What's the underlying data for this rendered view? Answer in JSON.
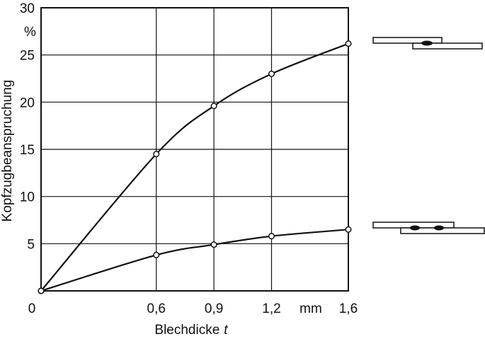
{
  "chart_data": {
    "type": "line",
    "xlabel": "Blechdicke",
    "xlabel_symbol": "t",
    "ylabel": "Kopfzugbeanspruchung",
    "yunit": "%",
    "xunit": "mm",
    "xlim": [
      0,
      1.6
    ],
    "ylim": [
      0,
      30
    ],
    "x_ticks": [
      {
        "value": 0,
        "label": "0"
      },
      {
        "value": 0.6,
        "label": "0,6"
      },
      {
        "value": 0.9,
        "label": "0,9"
      },
      {
        "value": 1.2,
        "label": "1,2"
      },
      {
        "value": 1.6,
        "label": "1,6"
      }
    ],
    "y_ticks": [
      {
        "value": 5,
        "label": "5"
      },
      {
        "value": 10,
        "label": "10"
      },
      {
        "value": 15,
        "label": "15"
      },
      {
        "value": 20,
        "label": "20"
      },
      {
        "value": 25,
        "label": "25"
      },
      {
        "value": 30,
        "label": "30"
      }
    ],
    "grid": true,
    "series": [
      {
        "legend": "single-spot-lap-joint-icon",
        "x": [
          0,
          0.6,
          0.9,
          1.2,
          1.6
        ],
        "y": [
          0,
          14.5,
          19.6,
          23.0,
          26.2
        ]
      },
      {
        "legend": "double-spot-lap-joint-icon",
        "x": [
          0,
          0.6,
          0.9,
          1.2,
          1.6
        ],
        "y": [
          0,
          3.8,
          4.9,
          5.8,
          6.5
        ]
      }
    ],
    "legend_placement": "right"
  }
}
